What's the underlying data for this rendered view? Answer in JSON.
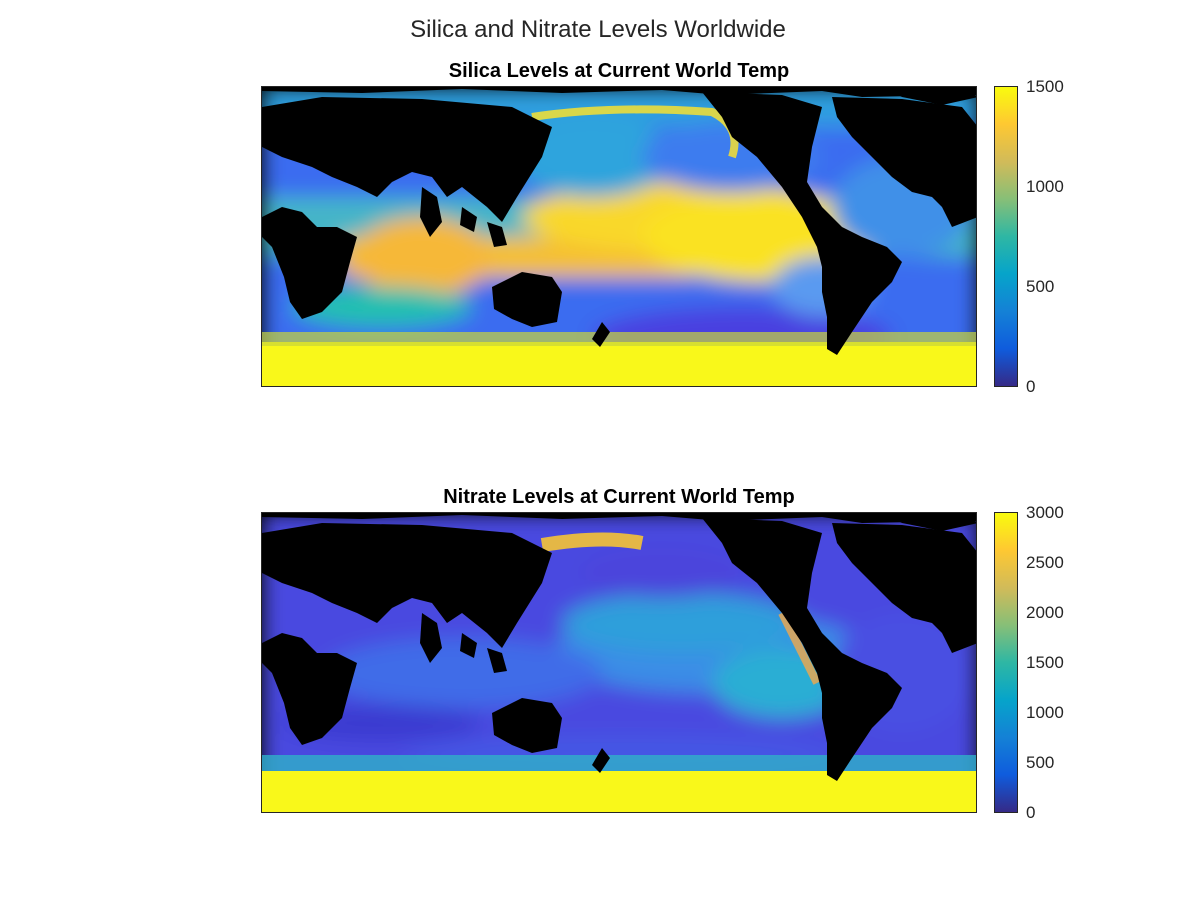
{
  "figure": {
    "title": "Silica and Nitrate Levels Worldwide"
  },
  "panels": [
    {
      "id": "silica",
      "title": "Silica Levels at Current World Temp",
      "colorbar": {
        "min": 0,
        "max": 1500,
        "ticks": [
          "0",
          "500",
          "1000",
          "1500"
        ]
      },
      "colormap": "parula",
      "land_color": "#000000"
    },
    {
      "id": "nitrate",
      "title": "Nitrate Levels at Current World Temp",
      "colorbar": {
        "min": 0,
        "max": 3000,
        "ticks": [
          "0",
          "500",
          "1000",
          "1500",
          "2000",
          "2500",
          "3000"
        ]
      },
      "colormap": "parula",
      "land_color": "#000000"
    }
  ],
  "chart_data": [
    {
      "type": "heatmap",
      "title": "Silica Levels at Current World Temp",
      "zlim": [
        0,
        1500
      ],
      "colorbar_ticks": [
        0,
        500,
        1000,
        1500
      ],
      "grid": false
    },
    {
      "type": "heatmap",
      "title": "Nitrate Levels at Current World Temp",
      "zlim": [
        0,
        3000
      ],
      "colorbar_ticks": [
        0,
        500,
        1000,
        1500,
        2000,
        2500,
        3000
      ],
      "grid": false
    }
  ]
}
